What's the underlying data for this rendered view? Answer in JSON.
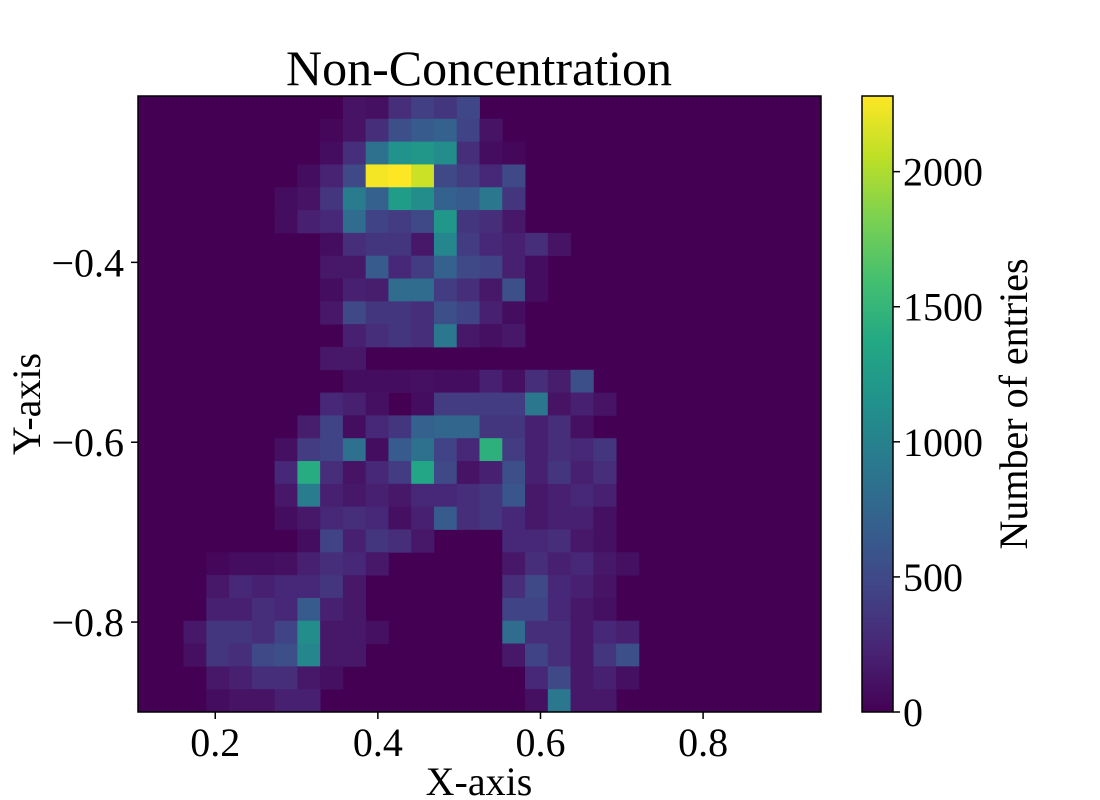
{
  "chart_data": {
    "type": "heatmap",
    "title": "Non-Concentration",
    "xlabel": "X-axis",
    "ylabel": "Y-axis",
    "colorbar_label": "Number of entries",
    "xlim": [
      0.105,
      0.945
    ],
    "ylim": [
      -0.9,
      -0.215
    ],
    "colormap": "viridis",
    "value_range": [
      0,
      2280
    ],
    "x_ticks": [
      {
        "value": 0.2,
        "label": "0.2"
      },
      {
        "value": 0.4,
        "label": "0.4"
      },
      {
        "value": 0.6,
        "label": "0.6"
      },
      {
        "value": 0.8,
        "label": "0.8"
      }
    ],
    "y_ticks": [
      {
        "value": -0.4,
        "label": "−0.4"
      },
      {
        "value": -0.6,
        "label": "−0.6"
      },
      {
        "value": -0.8,
        "label": "−0.8"
      }
    ],
    "colorbar_ticks": [
      {
        "value": 0,
        "label": "0"
      },
      {
        "value": 500,
        "label": "500"
      },
      {
        "value": 1000,
        "label": "1000"
      },
      {
        "value": 1500,
        "label": "1500"
      },
      {
        "value": 2000,
        "label": "2000"
      }
    ],
    "x_bin_edges": [
      0.105,
      0.945,
      30
    ],
    "y_bin_edges": [
      -0.9,
      -0.215,
      27
    ],
    "bins": [
      [
        9,
        0,
        120
      ],
      [
        10,
        0,
        100
      ],
      [
        11,
        0,
        300
      ],
      [
        12,
        0,
        420
      ],
      [
        13,
        0,
        350
      ],
      [
        14,
        0,
        480
      ],
      [
        8,
        1,
        40
      ],
      [
        9,
        1,
        120
      ],
      [
        10,
        1,
        300
      ],
      [
        11,
        1,
        550
      ],
      [
        12,
        1,
        650
      ],
      [
        13,
        1,
        700
      ],
      [
        14,
        1,
        450
      ],
      [
        15,
        1,
        120
      ],
      [
        8,
        2,
        80
      ],
      [
        9,
        2,
        300
      ],
      [
        10,
        2,
        850
      ],
      [
        11,
        2,
        1150
      ],
      [
        12,
        2,
        1200
      ],
      [
        13,
        2,
        1100
      ],
      [
        14,
        2,
        300
      ],
      [
        15,
        2,
        80
      ],
      [
        16,
        2,
        40
      ],
      [
        7,
        3,
        80
      ],
      [
        8,
        3,
        220
      ],
      [
        9,
        3,
        500
      ],
      [
        10,
        3,
        2250
      ],
      [
        11,
        3,
        2280
      ],
      [
        12,
        3,
        2100
      ],
      [
        13,
        3,
        500
      ],
      [
        14,
        3,
        400
      ],
      [
        15,
        3,
        250
      ],
      [
        16,
        3,
        500
      ],
      [
        6,
        4,
        80
      ],
      [
        7,
        4,
        120
      ],
      [
        8,
        4,
        350
      ],
      [
        9,
        4,
        950
      ],
      [
        10,
        4,
        700
      ],
      [
        11,
        4,
        1250
      ],
      [
        12,
        4,
        1100
      ],
      [
        13,
        4,
        700
      ],
      [
        14,
        4,
        650
      ],
      [
        15,
        4,
        900
      ],
      [
        16,
        4,
        350
      ],
      [
        6,
        5,
        80
      ],
      [
        7,
        5,
        200
      ],
      [
        8,
        5,
        250
      ],
      [
        9,
        5,
        800
      ],
      [
        10,
        5,
        450
      ],
      [
        11,
        5,
        400
      ],
      [
        12,
        5,
        500
      ],
      [
        13,
        5,
        1200
      ],
      [
        14,
        5,
        350
      ],
      [
        15,
        5,
        300
      ],
      [
        16,
        5,
        150
      ],
      [
        8,
        6,
        80
      ],
      [
        9,
        6,
        300
      ],
      [
        10,
        6,
        350
      ],
      [
        11,
        6,
        350
      ],
      [
        12,
        6,
        150
      ],
      [
        13,
        6,
        1050
      ],
      [
        14,
        6,
        400
      ],
      [
        15,
        6,
        250
      ],
      [
        16,
        6,
        200
      ],
      [
        17,
        6,
        300
      ],
      [
        18,
        6,
        120
      ],
      [
        8,
        7,
        150
      ],
      [
        9,
        7,
        150
      ],
      [
        10,
        7,
        650
      ],
      [
        11,
        7,
        250
      ],
      [
        12,
        7,
        400
      ],
      [
        13,
        7,
        700
      ],
      [
        14,
        7,
        500
      ],
      [
        15,
        7,
        450
      ],
      [
        16,
        7,
        200
      ],
      [
        17,
        7,
        80
      ],
      [
        8,
        8,
        80
      ],
      [
        9,
        8,
        200
      ],
      [
        10,
        8,
        180
      ],
      [
        11,
        8,
        800
      ],
      [
        12,
        8,
        800
      ],
      [
        13,
        8,
        400
      ],
      [
        14,
        8,
        300
      ],
      [
        15,
        8,
        150
      ],
      [
        16,
        8,
        550
      ],
      [
        17,
        8,
        80
      ],
      [
        8,
        9,
        150
      ],
      [
        9,
        9,
        500
      ],
      [
        10,
        9,
        350
      ],
      [
        11,
        9,
        350
      ],
      [
        12,
        9,
        300
      ],
      [
        13,
        9,
        550
      ],
      [
        14,
        9,
        450
      ],
      [
        15,
        9,
        200
      ],
      [
        16,
        9,
        80
      ],
      [
        9,
        10,
        200
      ],
      [
        10,
        10,
        300
      ],
      [
        11,
        10,
        350
      ],
      [
        12,
        10,
        300
      ],
      [
        13,
        10,
        900
      ],
      [
        14,
        10,
        150
      ],
      [
        15,
        10,
        100
      ],
      [
        16,
        10,
        150
      ],
      [
        8,
        11,
        150
      ],
      [
        9,
        11,
        150
      ],
      [
        9,
        12,
        80
      ],
      [
        10,
        12,
        80
      ],
      [
        11,
        12,
        80
      ],
      [
        12,
        12,
        100
      ],
      [
        13,
        12,
        80
      ],
      [
        14,
        12,
        80
      ],
      [
        15,
        12,
        200
      ],
      [
        16,
        12,
        100
      ],
      [
        17,
        12,
        300
      ],
      [
        18,
        12,
        180
      ],
      [
        19,
        12,
        550
      ],
      [
        8,
        13,
        250
      ],
      [
        9,
        13,
        200
      ],
      [
        10,
        13,
        100
      ],
      [
        12,
        13,
        80
      ],
      [
        13,
        13,
        400
      ],
      [
        14,
        13,
        400
      ],
      [
        15,
        13,
        400
      ],
      [
        16,
        13,
        400
      ],
      [
        17,
        13,
        900
      ],
      [
        18,
        13,
        120
      ],
      [
        19,
        13,
        200
      ],
      [
        20,
        13,
        120
      ],
      [
        7,
        14,
        180
      ],
      [
        8,
        14,
        450
      ],
      [
        9,
        14,
        80
      ],
      [
        10,
        14,
        250
      ],
      [
        11,
        14,
        350
      ],
      [
        12,
        14,
        700
      ],
      [
        13,
        14,
        750
      ],
      [
        14,
        14,
        750
      ],
      [
        15,
        14,
        350
      ],
      [
        16,
        14,
        350
      ],
      [
        17,
        14,
        200
      ],
      [
        18,
        14,
        300
      ],
      [
        19,
        14,
        100
      ],
      [
        6,
        15,
        100
      ],
      [
        7,
        15,
        400
      ],
      [
        8,
        15,
        450
      ],
      [
        9,
        15,
        850
      ],
      [
        10,
        15,
        80
      ],
      [
        11,
        15,
        650
      ],
      [
        12,
        15,
        850
      ],
      [
        13,
        15,
        450
      ],
      [
        14,
        15,
        250
      ],
      [
        15,
        15,
        1450
      ],
      [
        16,
        15,
        400
      ],
      [
        17,
        15,
        200
      ],
      [
        18,
        15,
        300
      ],
      [
        19,
        15,
        250
      ],
      [
        20,
        15,
        350
      ],
      [
        6,
        16,
        250
      ],
      [
        7,
        16,
        1400
      ],
      [
        8,
        16,
        300
      ],
      [
        9,
        16,
        120
      ],
      [
        10,
        16,
        250
      ],
      [
        11,
        16,
        400
      ],
      [
        12,
        16,
        1350
      ],
      [
        13,
        16,
        500
      ],
      [
        14,
        16,
        120
      ],
      [
        15,
        16,
        200
      ],
      [
        16,
        16,
        550
      ],
      [
        17,
        16,
        200
      ],
      [
        18,
        16,
        350
      ],
      [
        19,
        16,
        200
      ],
      [
        20,
        16,
        300
      ],
      [
        6,
        17,
        150
      ],
      [
        7,
        17,
        950
      ],
      [
        8,
        17,
        200
      ],
      [
        9,
        17,
        150
      ],
      [
        10,
        17,
        200
      ],
      [
        11,
        17,
        150
      ],
      [
        12,
        17,
        250
      ],
      [
        13,
        17,
        250
      ],
      [
        14,
        17,
        300
      ],
      [
        15,
        17,
        350
      ],
      [
        16,
        17,
        600
      ],
      [
        17,
        17,
        150
      ],
      [
        18,
        17,
        200
      ],
      [
        19,
        17,
        250
      ],
      [
        20,
        17,
        200
      ],
      [
        6,
        18,
        80
      ],
      [
        7,
        18,
        150
      ],
      [
        8,
        18,
        250
      ],
      [
        9,
        18,
        300
      ],
      [
        10,
        18,
        250
      ],
      [
        11,
        18,
        100
      ],
      [
        12,
        18,
        200
      ],
      [
        13,
        18,
        650
      ],
      [
        14,
        18,
        300
      ],
      [
        15,
        18,
        350
      ],
      [
        16,
        18,
        250
      ],
      [
        17,
        18,
        150
      ],
      [
        18,
        18,
        200
      ],
      [
        19,
        18,
        200
      ],
      [
        20,
        18,
        100
      ],
      [
        7,
        19,
        80
      ],
      [
        8,
        19,
        450
      ],
      [
        9,
        19,
        200
      ],
      [
        10,
        19,
        350
      ],
      [
        11,
        19,
        300
      ],
      [
        12,
        19,
        150
      ],
      [
        16,
        19,
        250
      ],
      [
        17,
        19,
        250
      ],
      [
        18,
        19,
        300
      ],
      [
        19,
        19,
        150
      ],
      [
        20,
        19,
        100
      ],
      [
        3,
        20,
        40
      ],
      [
        4,
        20,
        80
      ],
      [
        5,
        20,
        80
      ],
      [
        6,
        20,
        100
      ],
      [
        7,
        20,
        200
      ],
      [
        8,
        20,
        300
      ],
      [
        9,
        20,
        250
      ],
      [
        10,
        20,
        150
      ],
      [
        16,
        20,
        150
      ],
      [
        17,
        20,
        300
      ],
      [
        18,
        20,
        200
      ],
      [
        19,
        20,
        250
      ],
      [
        20,
        20,
        150
      ],
      [
        21,
        20,
        100
      ],
      [
        3,
        21,
        150
      ],
      [
        4,
        21,
        250
      ],
      [
        5,
        21,
        200
      ],
      [
        6,
        21,
        250
      ],
      [
        7,
        21,
        250
      ],
      [
        8,
        21,
        350
      ],
      [
        9,
        21,
        150
      ],
      [
        16,
        21,
        300
      ],
      [
        17,
        21,
        500
      ],
      [
        18,
        21,
        250
      ],
      [
        19,
        21,
        200
      ],
      [
        20,
        21,
        120
      ],
      [
        3,
        22,
        200
      ],
      [
        4,
        22,
        200
      ],
      [
        5,
        22,
        300
      ],
      [
        6,
        22,
        250
      ],
      [
        7,
        22,
        650
      ],
      [
        8,
        22,
        200
      ],
      [
        9,
        22,
        150
      ],
      [
        16,
        22,
        450
      ],
      [
        17,
        22,
        450
      ],
      [
        18,
        22,
        250
      ],
      [
        19,
        22,
        150
      ],
      [
        20,
        22,
        100
      ],
      [
        2,
        23,
        150
      ],
      [
        3,
        23,
        350
      ],
      [
        4,
        23,
        350
      ],
      [
        5,
        23,
        300
      ],
      [
        6,
        23,
        450
      ],
      [
        7,
        23,
        1100
      ],
      [
        8,
        23,
        150
      ],
      [
        9,
        23,
        150
      ],
      [
        10,
        23,
        100
      ],
      [
        16,
        23,
        800
      ],
      [
        17,
        23,
        300
      ],
      [
        18,
        23,
        300
      ],
      [
        19,
        23,
        150
      ],
      [
        20,
        23,
        250
      ],
      [
        21,
        23,
        200
      ],
      [
        2,
        24,
        100
      ],
      [
        3,
        24,
        350
      ],
      [
        4,
        24,
        300
      ],
      [
        5,
        24,
        500
      ],
      [
        6,
        24,
        550
      ],
      [
        7,
        24,
        1050
      ],
      [
        8,
        24,
        150
      ],
      [
        9,
        24,
        150
      ],
      [
        16,
        24,
        150
      ],
      [
        17,
        24,
        450
      ],
      [
        18,
        24,
        300
      ],
      [
        19,
        24,
        150
      ],
      [
        20,
        24,
        350
      ],
      [
        21,
        24,
        550
      ],
      [
        3,
        25,
        150
      ],
      [
        4,
        25,
        200
      ],
      [
        5,
        25,
        300
      ],
      [
        6,
        25,
        300
      ],
      [
        7,
        25,
        150
      ],
      [
        8,
        25,
        100
      ],
      [
        17,
        25,
        250
      ],
      [
        18,
        25,
        500
      ],
      [
        19,
        25,
        150
      ],
      [
        20,
        25,
        200
      ],
      [
        21,
        25,
        100
      ],
      [
        3,
        26,
        80
      ],
      [
        4,
        26,
        120
      ],
      [
        5,
        26,
        120
      ],
      [
        6,
        26,
        200
      ],
      [
        7,
        26,
        200
      ],
      [
        17,
        26,
        100
      ],
      [
        18,
        26,
        900
      ],
      [
        19,
        26,
        150
      ],
      [
        20,
        26,
        150
      ]
    ]
  }
}
